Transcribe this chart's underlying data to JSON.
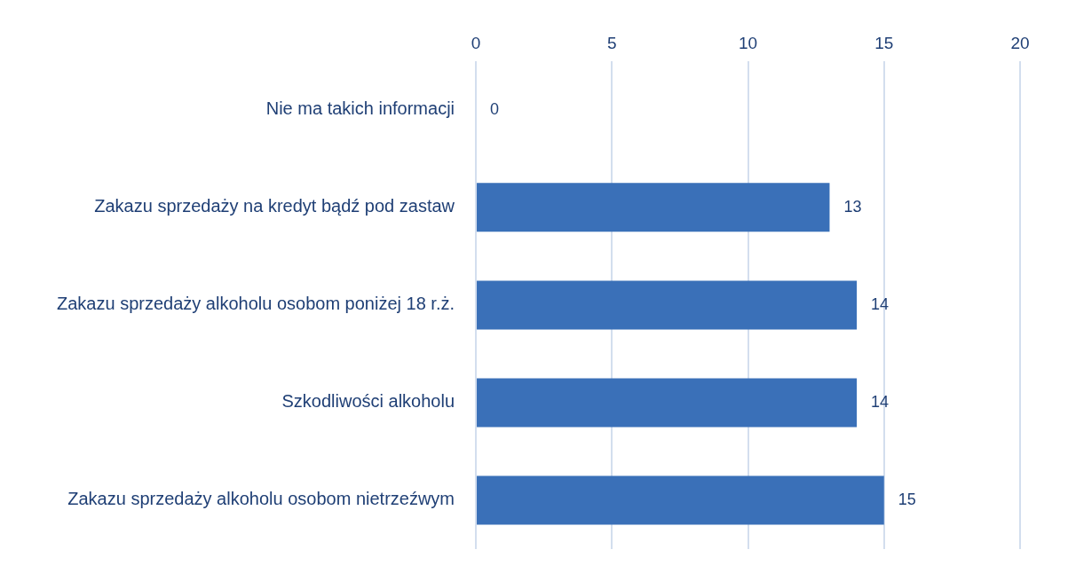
{
  "chart_data": {
    "type": "bar",
    "orientation": "horizontal",
    "categories": [
      "Nie ma takich informacji",
      "Zakazu sprzedaży na kredyt bądź pod zastaw",
      "Zakazu sprzedaży alkoholu osobom poniżej 18 r.ż.",
      "Szkodliwości alkoholu",
      "Zakazu sprzedaży alkoholu osobom nietrzeźwym"
    ],
    "values": [
      0,
      13,
      14,
      14,
      15
    ],
    "color": "#3a70b8",
    "xlim": [
      0,
      20
    ],
    "xticks": [
      0,
      5,
      10,
      15,
      20
    ],
    "grid": "x",
    "data_labels": true,
    "legend": false
  }
}
